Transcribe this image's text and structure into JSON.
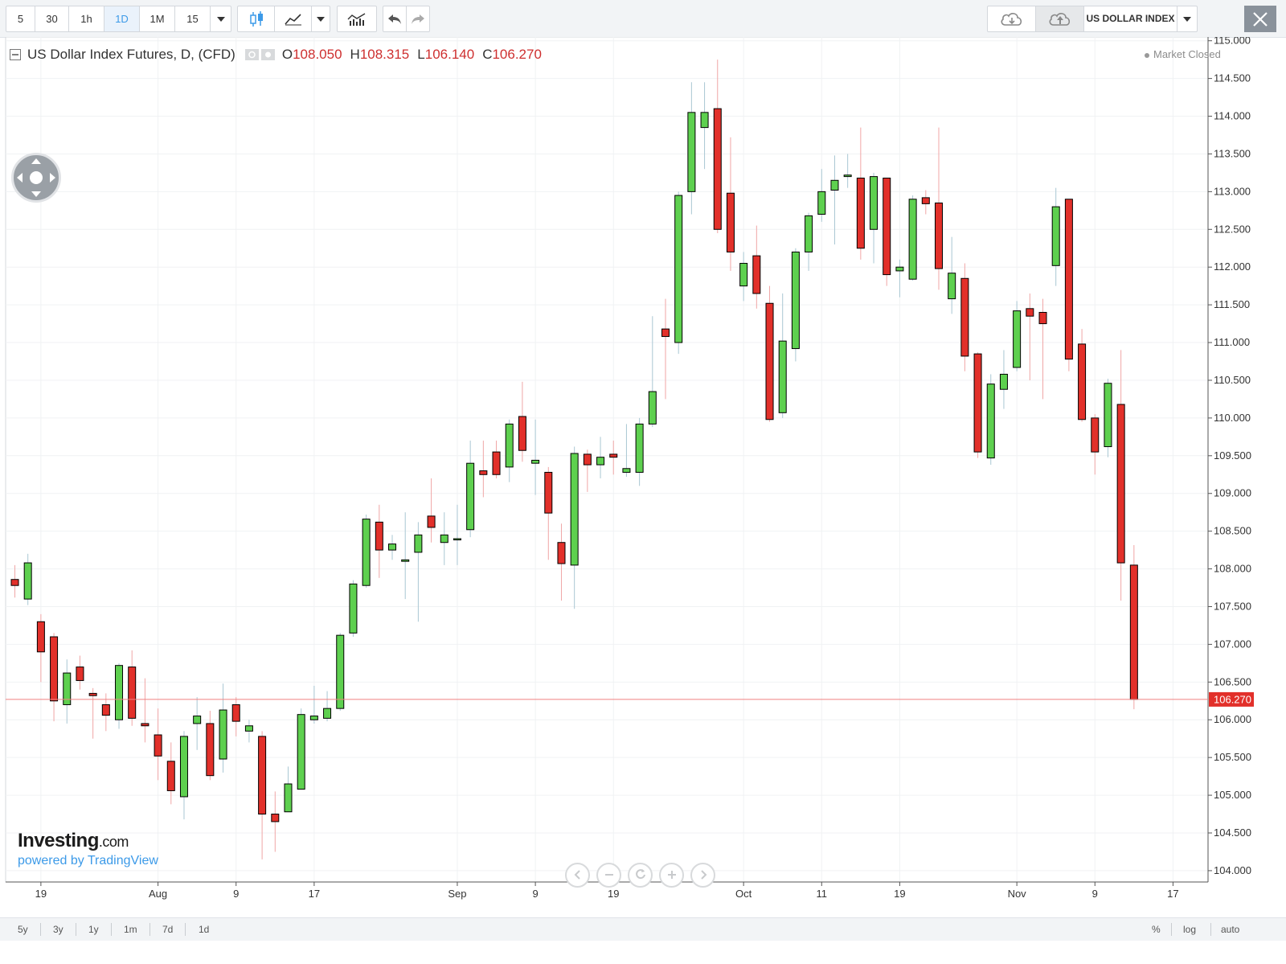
{
  "toolbar": {
    "intervals": [
      "5",
      "30",
      "1h",
      "1D",
      "1M",
      "15"
    ],
    "active_interval": "1D",
    "symbol_label": "US DOLLAR INDEX"
  },
  "legend": {
    "title": "US Dollar Index Futures, D, (CFD)",
    "open_label": "O",
    "open": "108.050",
    "high_label": "H",
    "high": "108.315",
    "low_label": "L",
    "low": "106.140",
    "close_label": "C",
    "close": "106.270"
  },
  "status": "Market Closed",
  "brand": {
    "logo_bold": "Investing",
    "logo_suffix": ".com",
    "powered": "powered by TradingView"
  },
  "ranges": [
    "5y",
    "3y",
    "1y",
    "1m",
    "7d",
    "1d"
  ],
  "scale_options": [
    "%",
    "log",
    "auto"
  ],
  "colors": {
    "up": "#5ed04f",
    "down": "#e2302a",
    "last_price_line": "#f08080",
    "last_price_tag": "#e2302a"
  },
  "chart_data": {
    "type": "candlestick",
    "ylim": [
      103.85,
      115.05
    ],
    "y_ticks": [
      "104.000",
      "104.500",
      "105.000",
      "105.500",
      "106.000",
      "106.500",
      "107.000",
      "107.500",
      "108.000",
      "108.500",
      "109.000",
      "109.500",
      "110.000",
      "110.500",
      "111.000",
      "111.500",
      "112.000",
      "112.500",
      "113.000",
      "113.500",
      "114.000",
      "114.500",
      "115.000"
    ],
    "x_ticks": [
      {
        "label": "19",
        "index": 2
      },
      {
        "label": "Aug",
        "index": 11
      },
      {
        "label": "9",
        "index": 17
      },
      {
        "label": "17",
        "index": 23
      },
      {
        "label": "Sep",
        "index": 34
      },
      {
        "label": "9",
        "index": 40
      },
      {
        "label": "19",
        "index": 46
      },
      {
        "label": "Oct",
        "index": 56
      },
      {
        "label": "11",
        "index": 62
      },
      {
        "label": "19",
        "index": 68
      },
      {
        "label": "Nov",
        "index": 77
      },
      {
        "label": "9",
        "index": 83
      },
      {
        "label": "17",
        "index": 89
      }
    ],
    "last_price": "106.270",
    "last_value": 106.27,
    "candles": [
      [
        107.86,
        108.05,
        107.62,
        107.78
      ],
      [
        107.6,
        108.2,
        107.52,
        108.08
      ],
      [
        107.3,
        107.4,
        106.5,
        106.9
      ],
      [
        107.1,
        107.15,
        105.98,
        106.25
      ],
      [
        106.2,
        106.8,
        105.95,
        106.62
      ],
      [
        106.7,
        106.85,
        106.4,
        106.52
      ],
      [
        106.35,
        106.42,
        105.75,
        106.32
      ],
      [
        106.2,
        106.35,
        105.85,
        106.06
      ],
      [
        106.0,
        106.75,
        105.88,
        106.72
      ],
      [
        106.7,
        106.92,
        105.92,
        106.02
      ],
      [
        105.95,
        106.55,
        105.7,
        105.92
      ],
      [
        105.8,
        106.15,
        105.2,
        105.52
      ],
      [
        105.45,
        105.7,
        104.88,
        105.06
      ],
      [
        104.98,
        105.85,
        104.68,
        105.78
      ],
      [
        105.95,
        106.3,
        105.6,
        106.05
      ],
      [
        105.95,
        106.12,
        105.2,
        105.26
      ],
      [
        105.48,
        106.48,
        105.3,
        106.13
      ],
      [
        106.2,
        106.3,
        105.78,
        105.98
      ],
      [
        105.85,
        106.0,
        105.7,
        105.92
      ],
      [
        105.78,
        105.85,
        104.15,
        104.75
      ],
      [
        104.75,
        105.05,
        104.25,
        104.65
      ],
      [
        104.78,
        105.38,
        104.78,
        105.15
      ],
      [
        105.08,
        106.15,
        105.08,
        106.07
      ],
      [
        106.0,
        106.45,
        105.95,
        106.05
      ],
      [
        106.02,
        106.38,
        105.98,
        106.15
      ],
      [
        106.15,
        107.15,
        106.12,
        107.12
      ],
      [
        107.15,
        107.85,
        107.1,
        107.8
      ],
      [
        107.78,
        108.72,
        107.75,
        108.66
      ],
      [
        108.62,
        108.85,
        107.88,
        108.25
      ],
      [
        108.25,
        108.45,
        108.12,
        108.33
      ],
      [
        108.1,
        108.75,
        107.6,
        108.12
      ],
      [
        108.22,
        108.62,
        107.3,
        108.45
      ],
      [
        108.7,
        109.2,
        108.35,
        108.55
      ],
      [
        108.35,
        108.75,
        108.05,
        108.45
      ],
      [
        108.4,
        108.85,
        108.05,
        108.4
      ],
      [
        108.52,
        109.7,
        108.42,
        109.4
      ],
      [
        109.3,
        109.7,
        108.95,
        109.25
      ],
      [
        109.55,
        109.7,
        109.2,
        109.25
      ],
      [
        109.35,
        109.98,
        109.15,
        109.92
      ],
      [
        110.02,
        110.48,
        109.42,
        109.57
      ],
      [
        109.4,
        109.98,
        108.98,
        109.44
      ],
      [
        109.28,
        109.35,
        108.12,
        108.74
      ],
      [
        108.35,
        108.6,
        107.58,
        108.07
      ],
      [
        108.05,
        109.62,
        107.47,
        109.53
      ],
      [
        109.52,
        109.58,
        109.02,
        109.38
      ],
      [
        109.38,
        109.75,
        109.2,
        109.48
      ],
      [
        109.52,
        109.7,
        109.25,
        109.48
      ],
      [
        109.28,
        109.92,
        109.22,
        109.33
      ],
      [
        109.28,
        110.0,
        109.1,
        109.92
      ],
      [
        109.92,
        111.35,
        109.88,
        110.35
      ],
      [
        111.18,
        111.58,
        110.25,
        111.08
      ],
      [
        111.0,
        113.0,
        110.85,
        112.95
      ],
      [
        113.0,
        114.45,
        112.7,
        114.05
      ],
      [
        113.85,
        114.45,
        113.3,
        114.05
      ],
      [
        114.1,
        114.75,
        112.45,
        112.5
      ],
      [
        112.98,
        113.72,
        111.95,
        112.2
      ],
      [
        111.75,
        112.2,
        111.55,
        112.05
      ],
      [
        112.15,
        112.55,
        111.45,
        111.65
      ],
      [
        111.52,
        111.75,
        109.95,
        109.98
      ],
      [
        110.07,
        111.65,
        110.0,
        111.02
      ],
      [
        110.92,
        112.25,
        110.75,
        112.2
      ],
      [
        112.2,
        112.72,
        111.95,
        112.68
      ],
      [
        112.7,
        113.3,
        112.6,
        113.0
      ],
      [
        113.02,
        113.48,
        112.3,
        113.15
      ],
      [
        113.2,
        113.5,
        113.05,
        113.22
      ],
      [
        113.18,
        113.85,
        112.1,
        112.25
      ],
      [
        112.5,
        113.25,
        112.05,
        113.2
      ],
      [
        113.18,
        113.18,
        111.75,
        111.9
      ],
      [
        111.95,
        112.1,
        111.6,
        112.0
      ],
      [
        111.84,
        112.95,
        111.82,
        112.9
      ],
      [
        112.92,
        113.02,
        112.7,
        112.84
      ],
      [
        112.85,
        113.85,
        111.7,
        111.98
      ],
      [
        111.58,
        112.4,
        111.38,
        111.92
      ],
      [
        111.85,
        112.05,
        110.62,
        110.82
      ],
      [
        110.85,
        110.87,
        109.47,
        109.55
      ],
      [
        109.47,
        110.58,
        109.38,
        110.45
      ],
      [
        110.38,
        110.9,
        110.12,
        110.58
      ],
      [
        110.67,
        111.55,
        110.62,
        111.42
      ],
      [
        111.45,
        111.65,
        110.5,
        111.35
      ],
      [
        111.4,
        111.58,
        110.25,
        111.25
      ],
      [
        112.02,
        113.05,
        111.75,
        112.8
      ],
      [
        112.9,
        112.9,
        110.62,
        110.78
      ],
      [
        110.98,
        111.18,
        109.95,
        109.98
      ],
      [
        110.0,
        110.05,
        109.25,
        109.55
      ],
      [
        109.62,
        110.52,
        109.48,
        110.46
      ],
      [
        110.18,
        110.9,
        107.58,
        108.08
      ],
      [
        108.05,
        108.315,
        106.14,
        106.27
      ]
    ]
  }
}
